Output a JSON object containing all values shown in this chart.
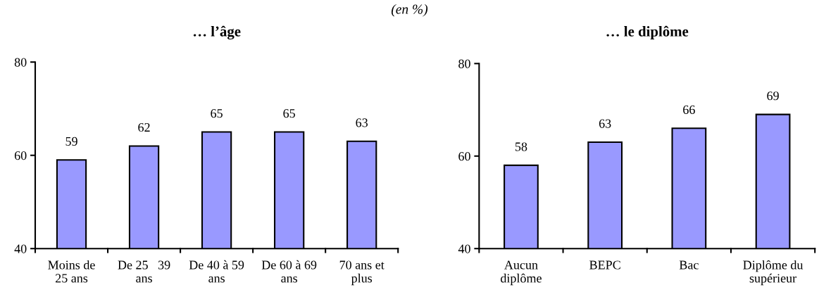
{
  "chart_data": [
    {
      "type": "bar",
      "title": "… l’âge",
      "annotations": [
        "(en %)"
      ],
      "categories": [
        "Moins de\n25 ans",
        "De 25   39\nans",
        "De 40 à 59\nans",
        "De 60 à 69\nans",
        "70 ans et\nplus"
      ],
      "values": [
        59,
        62,
        65,
        65,
        63
      ],
      "color": "#9999ff",
      "data_labels": true,
      "ylim": [
        40,
        80
      ],
      "yticks": [
        40,
        60,
        80
      ],
      "grid": false,
      "legend": false
    },
    {
      "type": "bar",
      "title": "… le diplôme",
      "categories": [
        "Aucun\ndiplôme",
        "BEPC",
        "Bac",
        "Diplôme du\nsupérieur"
      ],
      "values": [
        58,
        63,
        66,
        69
      ],
      "color": "#9999ff",
      "data_labels": true,
      "ylim": [
        40,
        80
      ],
      "yticks": [
        40,
        60,
        80
      ],
      "grid": false,
      "legend": false
    }
  ]
}
